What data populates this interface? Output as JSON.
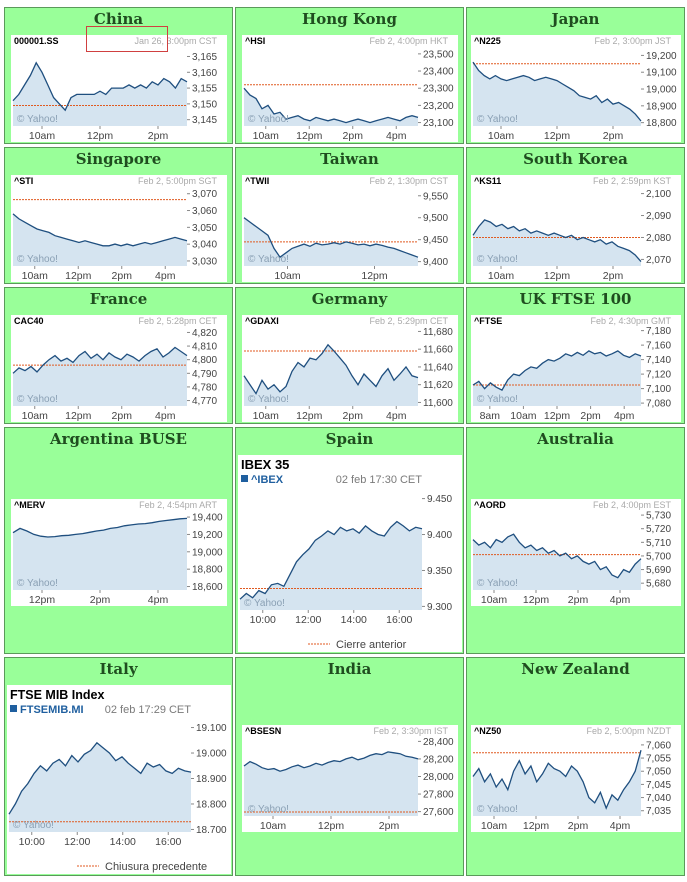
{
  "colors": {
    "cell_bg": "#99ff99",
    "cell_border": "#5a9a5a",
    "title_color": "#1f4d1f",
    "line": "#1f4f7f",
    "fill": "#d5e4f0",
    "prev_close": "#e05a20",
    "axis_text": "#444444",
    "header_gray": "#aaaaaa",
    "watermark": "#8aa0b4"
  },
  "cells": [
    {
      "title": "China",
      "chart_data": {
        "type": "line",
        "style": "yahoo",
        "symbol": "000001.SS",
        "datetime": "Jan 26, 3:00pm CST",
        "x_labels": [
          "10am",
          "12pm",
          "2pm"
        ],
        "y_ticks": [
          3165,
          3160,
          3155,
          3150,
          3145
        ],
        "y_tick_labels": [
          "3,165",
          "3,160",
          "3,155",
          "3,150",
          "3,145"
        ],
        "ylim": [
          3143,
          3168
        ],
        "prev_close": 3149.5,
        "watermark": "© Yahoo!",
        "values": [
          3151,
          3153,
          3156,
          3159,
          3163,
          3160,
          3156,
          3152,
          3150,
          3148,
          3152,
          3153,
          3153,
          3153,
          3153,
          3154,
          3153,
          3155,
          3155,
          3155,
          3156,
          3155,
          3156,
          3155,
          3157,
          3156,
          3158,
          3157,
          3155,
          3158,
          3157
        ]
      }
    },
    {
      "title": "Hong Kong",
      "chart_data": {
        "type": "line",
        "style": "yahoo",
        "symbol": "^HSI",
        "datetime": "Feb 2, 4:00pm HKT",
        "x_labels": [
          "10am",
          "12pm",
          "2pm",
          "4pm"
        ],
        "y_ticks": [
          23500,
          23400,
          23300,
          23200,
          23100
        ],
        "y_tick_labels": [
          "23,500",
          "23,400",
          "23,300",
          "23,200",
          "23,100"
        ],
        "ylim": [
          23080,
          23540
        ],
        "prev_close": 23320,
        "watermark": "© Yahoo!",
        "values": [
          23300,
          23260,
          23240,
          23180,
          23200,
          23150,
          23160,
          23120,
          23130,
          23140,
          23120,
          23110,
          23130,
          23120,
          23110,
          23120,
          23110,
          23100,
          23110,
          23120,
          23110,
          23100,
          23110,
          23120,
          23130,
          23120,
          23110,
          23130,
          23140,
          23130
        ]
      }
    },
    {
      "title": "Japan",
      "chart_data": {
        "type": "line",
        "style": "yahoo",
        "symbol": "^N225",
        "datetime": "Feb 2, 3:00pm JST",
        "x_labels": [
          "10am",
          "12pm",
          "2pm"
        ],
        "y_ticks": [
          19200,
          19100,
          19000,
          18900,
          18800
        ],
        "y_tick_labels": [
          "19,200",
          "19,100",
          "19,000",
          "18,900",
          "18,800"
        ],
        "ylim": [
          18780,
          19250
        ],
        "prev_close": 19150,
        "watermark": "© Yahoo!",
        "values": [
          19160,
          19110,
          19080,
          19060,
          19080,
          19060,
          19050,
          19060,
          19070,
          19080,
          19070,
          19050,
          19060,
          19070,
          19060,
          19050,
          19030,
          19010,
          18990,
          18960,
          18950,
          18940,
          18960,
          18920,
          18940,
          18910,
          18920,
          18900,
          18880,
          18850,
          18810
        ]
      }
    },
    {
      "title": "Singapore",
      "chart_data": {
        "type": "line",
        "style": "yahoo",
        "symbol": "^STI",
        "datetime": "Feb 2, 5:00pm SGT",
        "x_labels": [
          "10am",
          "12pm",
          "2pm",
          "4pm"
        ],
        "y_ticks": [
          3070,
          3060,
          3050,
          3040,
          3030
        ],
        "y_tick_labels": [
          "3,070",
          "3,060",
          "3,050",
          "3,040",
          "3,030"
        ],
        "ylim": [
          3027,
          3074
        ],
        "prev_close": 3066.5,
        "watermark": "© Yahoo!",
        "values": [
          3058,
          3055,
          3053,
          3051,
          3049,
          3048,
          3047,
          3045,
          3044,
          3043,
          3042,
          3041,
          3042,
          3041,
          3040,
          3039,
          3039,
          3040,
          3039,
          3040,
          3039,
          3040,
          3041,
          3040,
          3041,
          3042,
          3043,
          3044,
          3043,
          3042
        ]
      }
    },
    {
      "title": "Taiwan",
      "chart_data": {
        "type": "line",
        "style": "yahoo",
        "symbol": "^TWII",
        "datetime": "Feb 2, 1:30pm CST",
        "x_labels": [
          "10am",
          "12pm"
        ],
        "y_ticks": [
          9550,
          9500,
          9450,
          9400
        ],
        "y_tick_labels": [
          "9,550",
          "9,500",
          "9,450",
          "9,400"
        ],
        "ylim": [
          9390,
          9570
        ],
        "prev_close": 9445,
        "watermark": "© Yahoo!",
        "values": [
          9500,
          9490,
          9480,
          9470,
          9460,
          9430,
          9410,
          9420,
          9430,
          9435,
          9440,
          9435,
          9442,
          9438,
          9440,
          9443,
          9440,
          9445,
          9442,
          9438,
          9440,
          9436,
          9440,
          9437,
          9433,
          9430,
          9425,
          9420,
          9415,
          9410
        ]
      }
    },
    {
      "title": "South Korea",
      "chart_data": {
        "type": "line",
        "style": "yahoo",
        "symbol": "^KS11",
        "datetime": "Feb 2, 2:59pm KST",
        "x_labels": [
          "10am",
          "12pm",
          "2pm"
        ],
        "y_ticks": [
          2100,
          2090,
          2080,
          2070
        ],
        "y_tick_labels": [
          "2,100",
          "2,090",
          "2,080",
          "2,070"
        ],
        "ylim": [
          2067,
          2103
        ],
        "prev_close": 2080,
        "watermark": "© Yahoo!",
        "values": [
          2081,
          2085,
          2088,
          2087,
          2085,
          2086,
          2084,
          2085,
          2083,
          2084,
          2082,
          2083,
          2082,
          2081,
          2082,
          2081,
          2080,
          2081,
          2079,
          2080,
          2079,
          2078,
          2079,
          2077,
          2078,
          2076,
          2075,
          2074,
          2072,
          2069
        ]
      }
    },
    {
      "title": "France",
      "chart_data": {
        "type": "line",
        "style": "yahoo",
        "symbol": "CAC40",
        "datetime": "Feb 2, 5:28pm CET",
        "x_labels": [
          "10am",
          "12pm",
          "2pm",
          "4pm"
        ],
        "y_ticks": [
          4820,
          4810,
          4800,
          4790,
          4780,
          4770
        ],
        "y_tick_labels": [
          "4,820",
          "4,810",
          "4,800",
          "4,790",
          "4,780",
          "4,770"
        ],
        "ylim": [
          4766,
          4824
        ],
        "prev_close": 4796,
        "watermark": "© Yahoo!",
        "values": [
          4790,
          4794,
          4792,
          4795,
          4791,
          4796,
          4800,
          4803,
          4799,
          4801,
          4798,
          4803,
          4806,
          4801,
          4804,
          4800,
          4805,
          4802,
          4800,
          4804,
          4802,
          4799,
          4803,
          4806,
          4808,
          4802,
          4805,
          4809,
          4806,
          4803
        ]
      }
    },
    {
      "title": "Germany",
      "chart_data": {
        "type": "line",
        "style": "yahoo",
        "symbol": "^GDAXI",
        "datetime": "Feb 2, 5:29pm CET",
        "x_labels": [
          "10am",
          "12pm",
          "2pm",
          "4pm"
        ],
        "y_ticks": [
          11680,
          11660,
          11640,
          11620,
          11600
        ],
        "y_tick_labels": [
          "11,680",
          "11,660",
          "11,640",
          "11,620",
          "11,600"
        ],
        "ylim": [
          11596,
          11685
        ],
        "prev_close": 11658,
        "watermark": "© Yahoo!",
        "values": [
          11630,
          11620,
          11610,
          11625,
          11615,
          11620,
          11612,
          11618,
          11635,
          11645,
          11640,
          11650,
          11648,
          11655,
          11665,
          11658,
          11650,
          11642,
          11630,
          11620,
          11632,
          11625,
          11618,
          11630,
          11638,
          11625,
          11632,
          11640,
          11630,
          11628
        ]
      }
    },
    {
      "title": "UK FTSE 100",
      "chart_data": {
        "type": "line",
        "style": "yahoo",
        "symbol": "^FTSE",
        "datetime": "Feb 2, 4:30pm GMT",
        "x_labels": [
          "8am",
          "10am",
          "12pm",
          "2pm",
          "4pm"
        ],
        "y_ticks": [
          7180,
          7160,
          7140,
          7120,
          7100,
          7080
        ],
        "y_tick_labels": [
          "7,180",
          "7,160",
          "7,140",
          "7,120",
          "7,100",
          "7,080"
        ],
        "ylim": [
          7076,
          7185
        ],
        "prev_close": 7105,
        "watermark": "© Yahoo!",
        "values": [
          7105,
          7110,
          7100,
          7108,
          7102,
          7098,
          7112,
          7120,
          7118,
          7125,
          7130,
          7128,
          7135,
          7140,
          7138,
          7142,
          7148,
          7145,
          7150,
          7146,
          7152,
          7148,
          7150,
          7145,
          7148,
          7152,
          7146,
          7143,
          7148,
          7145
        ]
      }
    },
    {
      "title": "Argentina BUSE",
      "chart_data": {
        "type": "line",
        "style": "yahoo",
        "symbol": "^MERV",
        "datetime": "Feb 2, 4:54pm ART",
        "x_labels": [
          "12pm",
          "2pm",
          "4pm"
        ],
        "y_ticks": [
          19400,
          19200,
          19000,
          18800,
          18600
        ],
        "y_tick_labels": [
          "19,400",
          "19,200",
          "19,000",
          "18,800",
          "18,600"
        ],
        "ylim": [
          18560,
          19470
        ],
        "prev_close": null,
        "watermark": "© Yahoo!",
        "values": [
          19220,
          19270,
          19240,
          19200,
          19180,
          19170,
          19175,
          19185,
          19190,
          19200,
          19210,
          19225,
          19240,
          19250,
          19270,
          19280,
          19300,
          19310,
          19320,
          19325,
          19335,
          19350,
          19360,
          19370,
          19380,
          19385
        ]
      }
    },
    {
      "title": "Spain",
      "chart_data": {
        "type": "line",
        "style": "ibex",
        "name": "IBEX 35",
        "symbol": "^IBEX",
        "datetime": "02 feb 17:30 CET",
        "x_labels": [
          "10:00",
          "12:00",
          "14:00",
          "16:00"
        ],
        "y_ticks": [
          9450,
          9400,
          9350,
          9300
        ],
        "y_tick_labels": [
          "9.450",
          "9.400",
          "9.350",
          "9.300"
        ],
        "ylim": [
          9295,
          9455
        ],
        "prev_close": 9325,
        "legend_label": "Cierre anterior",
        "watermark": "© Yahoo!",
        "values": [
          9310,
          9318,
          9312,
          9322,
          9318,
          9330,
          9332,
          9328,
          9345,
          9362,
          9372,
          9380,
          9392,
          9398,
          9405,
          9400,
          9410,
          9405,
          9408,
          9402,
          9412,
          9405,
          9400,
          9398,
          9410,
          9418,
          9412,
          9405,
          9410,
          9408
        ]
      }
    },
    {
      "title": "Australia",
      "chart_data": {
        "type": "line",
        "style": "yahoo",
        "symbol": "^AORD",
        "datetime": "Feb 2, 4:00pm EST",
        "x_labels": [
          "10am",
          "12pm",
          "2pm",
          "4pm"
        ],
        "y_ticks": [
          5730,
          5720,
          5710,
          5700,
          5690,
          5680
        ],
        "y_tick_labels": [
          "5,730",
          "5,720",
          "5,710",
          "5,700",
          "5,690",
          "5,680"
        ],
        "ylim": [
          5675,
          5733
        ],
        "prev_close": 5701,
        "watermark": "© Yahoo!",
        "values": [
          5712,
          5708,
          5710,
          5706,
          5712,
          5710,
          5714,
          5716,
          5710,
          5706,
          5708,
          5704,
          5706,
          5702,
          5704,
          5700,
          5702,
          5698,
          5700,
          5696,
          5694,
          5696,
          5690,
          5692,
          5686,
          5684,
          5690,
          5688,
          5694,
          5698
        ]
      }
    },
    {
      "title": "Italy",
      "chart_data": {
        "type": "line",
        "style": "mib",
        "name": "FTSE MIB Index",
        "symbol": "FTSEMIB.MI",
        "datetime": "02 feb 17:29 CET",
        "x_labels": [
          "10:00",
          "12:00",
          "14:00",
          "16:00"
        ],
        "y_ticks": [
          19100,
          19000,
          18900,
          18800,
          18700
        ],
        "y_tick_labels": [
          "19.100",
          "19.000",
          "18.900",
          "18.800",
          "18.700"
        ],
        "ylim": [
          18690,
          19110
        ],
        "prev_close": 18730,
        "legend_label": "Chiusura precedente",
        "watermark": "© Yahoo!",
        "values": [
          18760,
          18800,
          18850,
          18880,
          18920,
          18950,
          18930,
          18960,
          18975,
          18950,
          18990,
          18965,
          18995,
          19010,
          19040,
          19020,
          19000,
          18970,
          18985,
          18960,
          18940,
          18920,
          18960,
          18945,
          18955,
          18930,
          18920,
          18940,
          18930,
          18925
        ]
      }
    },
    {
      "title": "India",
      "chart_data": {
        "type": "line",
        "style": "yahoo",
        "symbol": "^BSESN",
        "datetime": "Feb 2, 3:30pm IST",
        "x_labels": [
          "10am",
          "12pm",
          "2pm"
        ],
        "y_ticks": [
          28400,
          28200,
          28000,
          27800,
          27600
        ],
        "y_tick_labels": [
          "28,400",
          "28,200",
          "28,000",
          "27,800",
          "27,600"
        ],
        "ylim": [
          27550,
          28450
        ],
        "prev_close": 27595,
        "watermark": "© Yahoo!",
        "values": [
          28120,
          28170,
          28140,
          28100,
          28080,
          28090,
          28060,
          28080,
          28110,
          28130,
          28100,
          28120,
          28150,
          28130,
          28160,
          28180,
          28170,
          28200,
          28220,
          28190,
          28210,
          28240,
          28260,
          28250,
          28280,
          28270,
          28260,
          28230,
          28220,
          28200
        ]
      }
    },
    {
      "title": "New Zealand",
      "chart_data": {
        "type": "line",
        "style": "yahoo",
        "symbol": "^NZ50",
        "datetime": "Feb 2, 5:00pm NZDT",
        "x_labels": [
          "10am",
          "12pm",
          "2pm",
          "4pm"
        ],
        "y_ticks": [
          7060,
          7055,
          7050,
          7045,
          7040,
          7035
        ],
        "y_tick_labels": [
          "7,060",
          "7,055",
          "7,050",
          "7,045",
          "7,040",
          "7,035"
        ],
        "ylim": [
          7033,
          7063
        ],
        "prev_close": 7057,
        "watermark": "© Yahoo!",
        "values": [
          7048,
          7051,
          7046,
          7049,
          7044,
          7047,
          7043,
          7050,
          7054,
          7049,
          7052,
          7046,
          7049,
          7053,
          7051,
          7050,
          7048,
          7052,
          7050,
          7046,
          7040,
          7038,
          7042,
          7036,
          7041,
          7039,
          7043,
          7046,
          7050,
          7058
        ]
      }
    }
  ]
}
